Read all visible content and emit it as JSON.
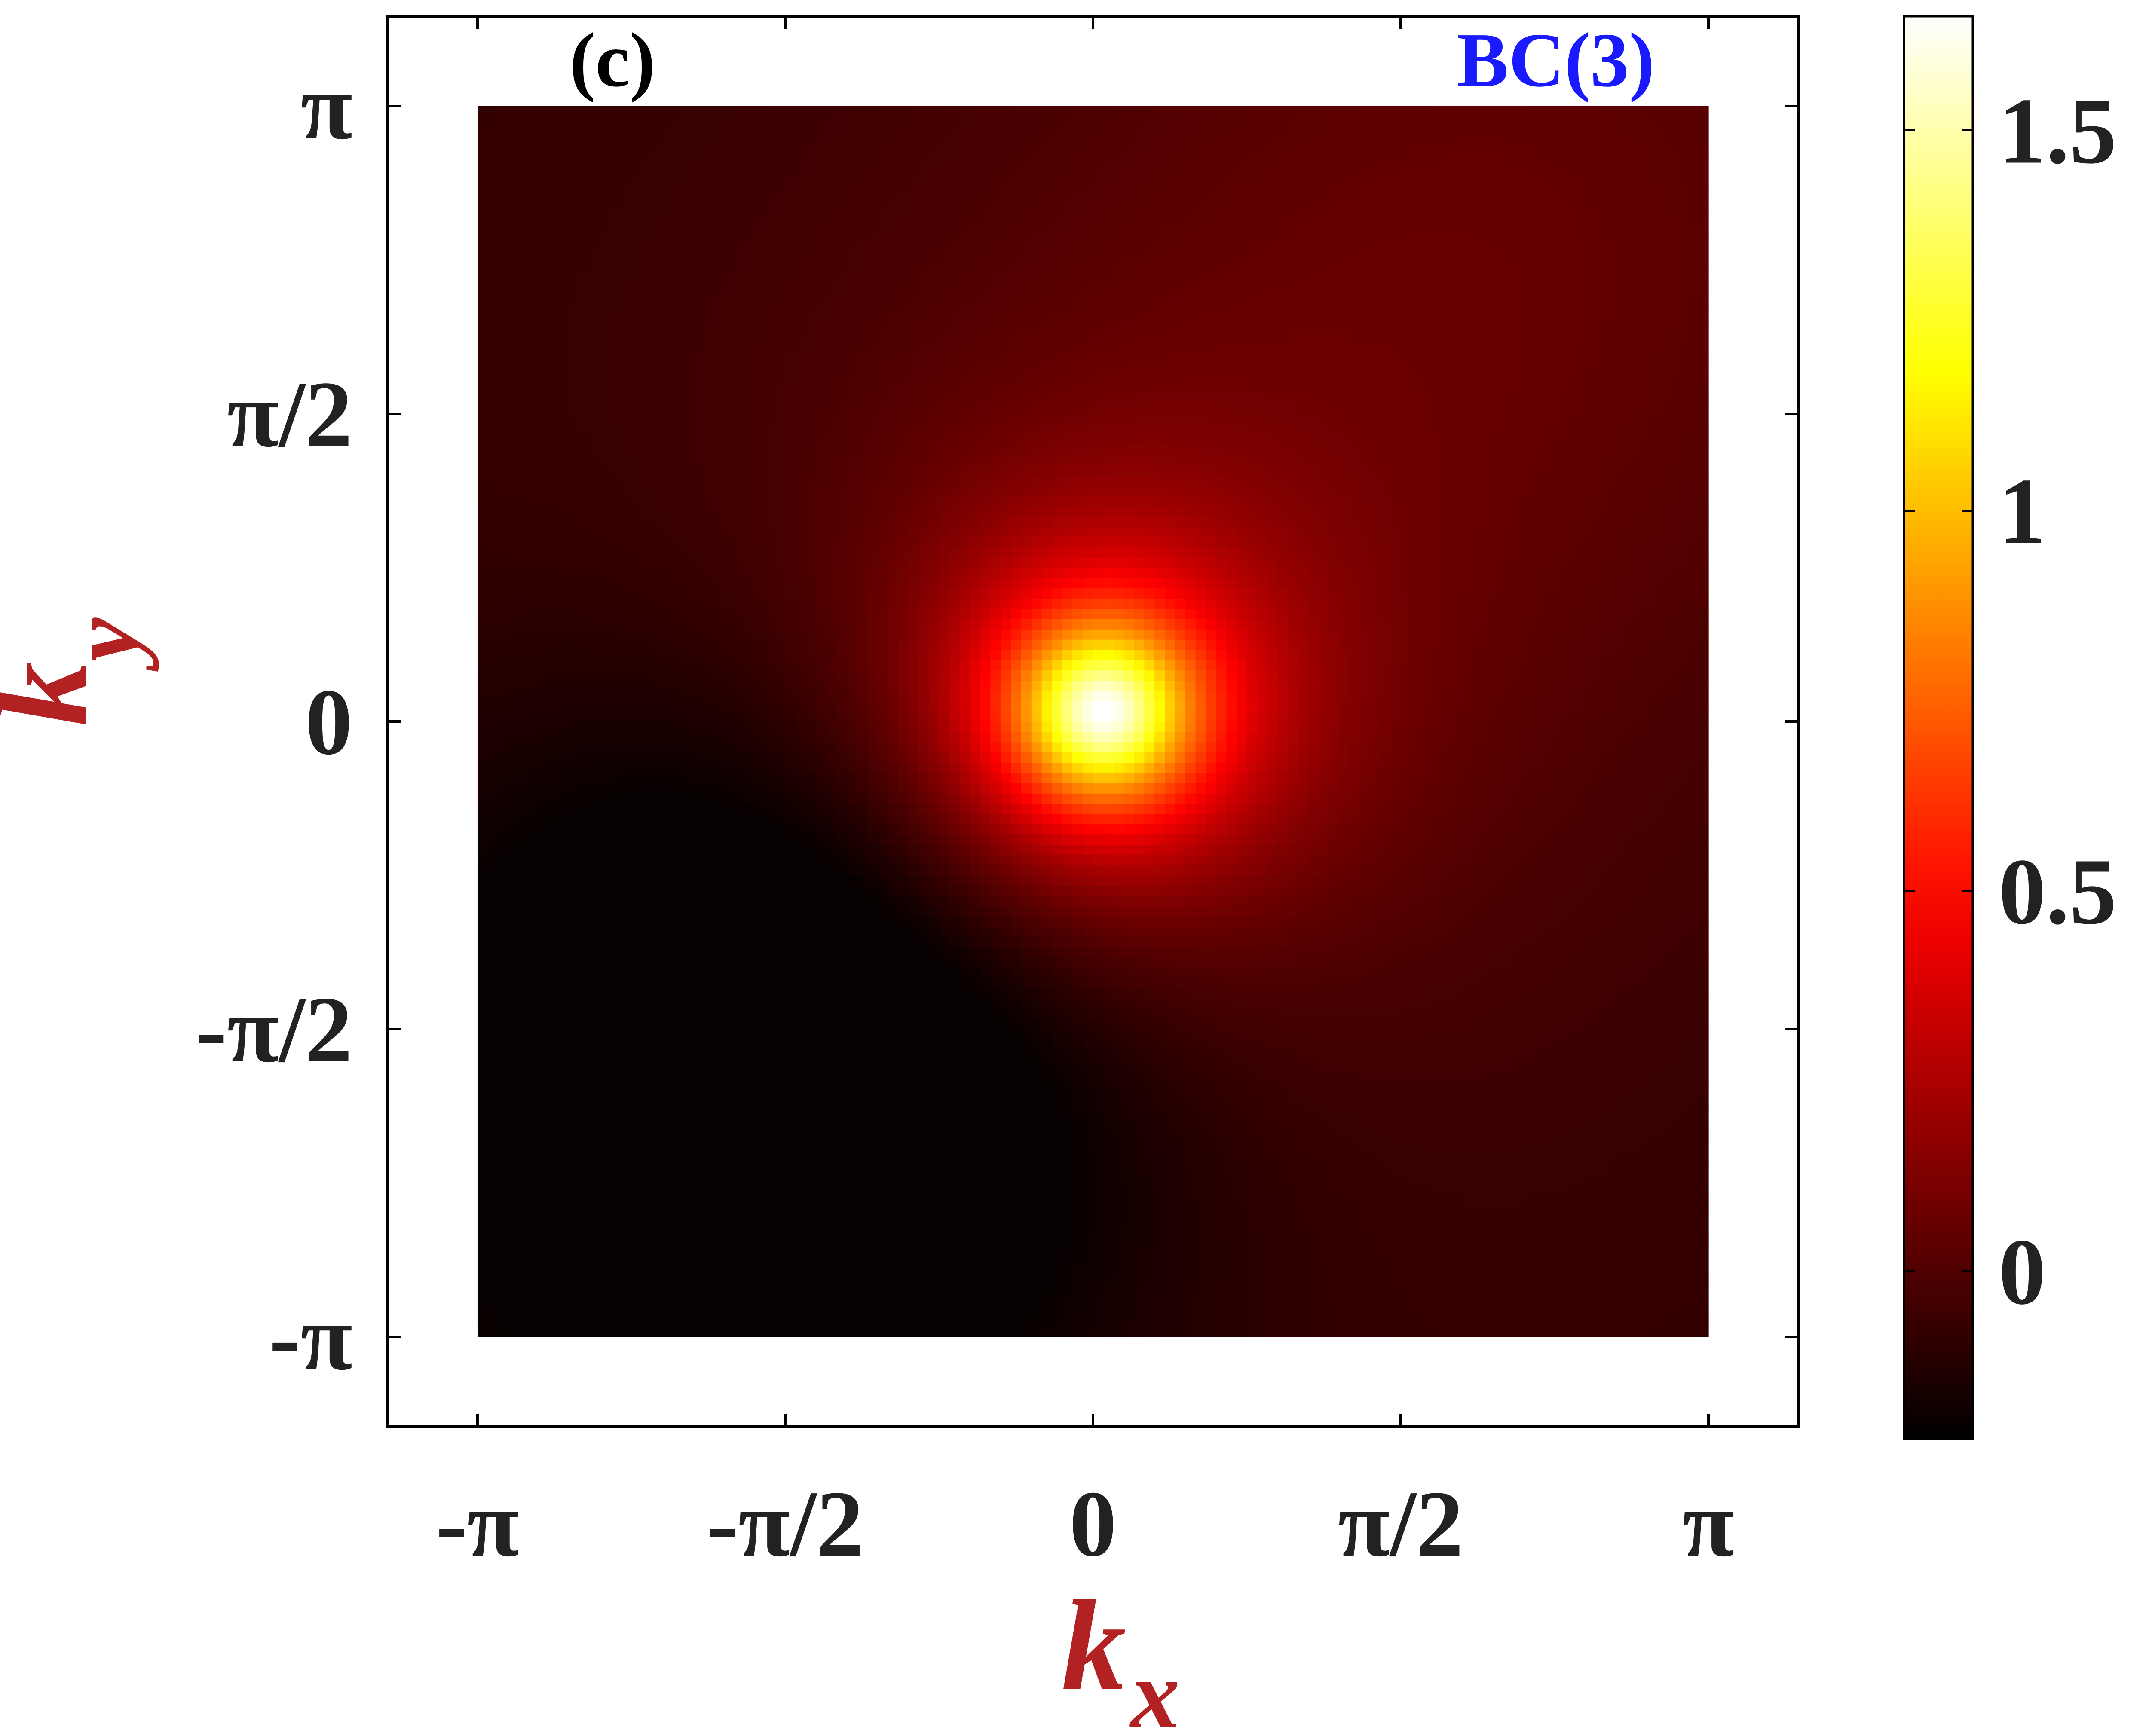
{
  "chart_data": {
    "type": "heatmap",
    "panel_label": "(c)",
    "panel_title": "BC(3)",
    "xlabel": {
      "base": "k",
      "sub": "x"
    },
    "ylabel": {
      "base": "k",
      "sub": "y"
    },
    "x_ticks": [
      {
        "value": -3.14159,
        "label": "-π"
      },
      {
        "value": -1.5708,
        "label": "-π/2"
      },
      {
        "value": 0,
        "label": "0"
      },
      {
        "value": 1.5708,
        "label": "π/2"
      },
      {
        "value": 3.14159,
        "label": "π"
      }
    ],
    "y_ticks": [
      {
        "value": 3.14159,
        "label": "π"
      },
      {
        "value": 1.5708,
        "label": "π/2"
      },
      {
        "value": 0,
        "label": "0"
      },
      {
        "value": -1.5708,
        "label": "-π/2"
      },
      {
        "value": -3.14159,
        "label": "-π"
      }
    ],
    "xlim": [
      -3.6,
      3.6
    ],
    "ylim": [
      -3.6,
      3.6
    ],
    "data_extent": {
      "x": [
        -3.14159,
        3.14159
      ],
      "y": [
        -3.14159,
        3.14159
      ]
    },
    "peak": {
      "x": 0.05,
      "y": 0.05,
      "value": 1.65
    },
    "field_min": -0.2,
    "colorbar": {
      "range": [
        -0.22,
        1.65
      ],
      "ticks": [
        {
          "value": 0,
          "label": "0"
        },
        {
          "value": 0.5,
          "label": "0.5"
        },
        {
          "value": 1,
          "label": "1"
        },
        {
          "value": 1.5,
          "label": "1.5"
        }
      ],
      "colormap": "hot"
    },
    "colors": {
      "axis_label": "#b22222",
      "panel_title": "#1a1aff",
      "tick_text": "#222222"
    }
  }
}
